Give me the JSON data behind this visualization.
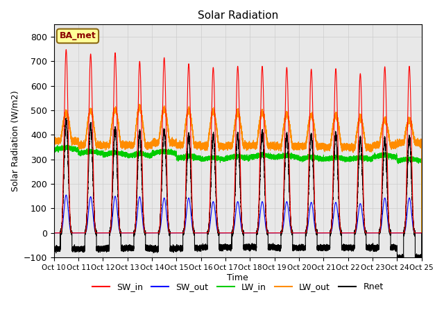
{
  "title": "Solar Radiation",
  "xlabel": "Time",
  "ylabel": "Solar Radiation (W/m2)",
  "ylim": [
    -100,
    850
  ],
  "xlim": [
    0,
    360
  ],
  "annotation": "BA_met",
  "annotation_color": "#8B0000",
  "annotation_bg": "#FFFF99",
  "annotation_border": "#8B6914",
  "colors": {
    "SW_in": "#FF0000",
    "SW_out": "#0000FF",
    "LW_in": "#00CC00",
    "LW_out": "#FF8C00",
    "Rnet": "#000000"
  },
  "tick_labels": [
    "Oct 10",
    "Oct 11",
    "Oct 12",
    "Oct 13",
    "Oct 14",
    "Oct 15",
    "Oct 16",
    "Oct 17",
    "Oct 18",
    "Oct 19",
    "Oct 20",
    "Oct 21",
    "Oct 22",
    "Oct 23",
    "Oct 24",
    "Oct 25"
  ],
  "tick_positions": [
    0,
    24,
    48,
    72,
    96,
    120,
    144,
    168,
    192,
    216,
    240,
    264,
    288,
    312,
    336,
    360
  ],
  "grid_color": "#CCCCCC",
  "plot_bg": "#E8E8E8",
  "sw_in_peaks": [
    748,
    730,
    735,
    700,
    715,
    690,
    675,
    680,
    680,
    675,
    668,
    670,
    650,
    678,
    680
  ],
  "sw_out_peaks": [
    155,
    148,
    150,
    148,
    143,
    143,
    128,
    128,
    128,
    128,
    125,
    125,
    120,
    143,
    143
  ],
  "lw_in_base": [
    340,
    325,
    320,
    315,
    325,
    305,
    300,
    305,
    310,
    308,
    302,
    300,
    300,
    310,
    295
  ],
  "lw_out_base": [
    375,
    358,
    358,
    358,
    368,
    358,
    353,
    356,
    356,
    353,
    353,
    350,
    348,
    358,
    368
  ],
  "lw_out_peaks": [
    490,
    500,
    505,
    510,
    505,
    500,
    495,
    490,
    490,
    485,
    480,
    480,
    470,
    460,
    460
  ],
  "rnet_peaks": [
    460,
    440,
    425,
    410,
    420,
    400,
    400,
    400,
    410,
    400,
    400,
    405,
    385,
    380,
    390
  ],
  "rnet_night": [
    -65,
    -65,
    -62,
    -62,
    -65,
    -62,
    -58,
    -58,
    -58,
    -60,
    -60,
    -60,
    -60,
    -60,
    -100
  ]
}
